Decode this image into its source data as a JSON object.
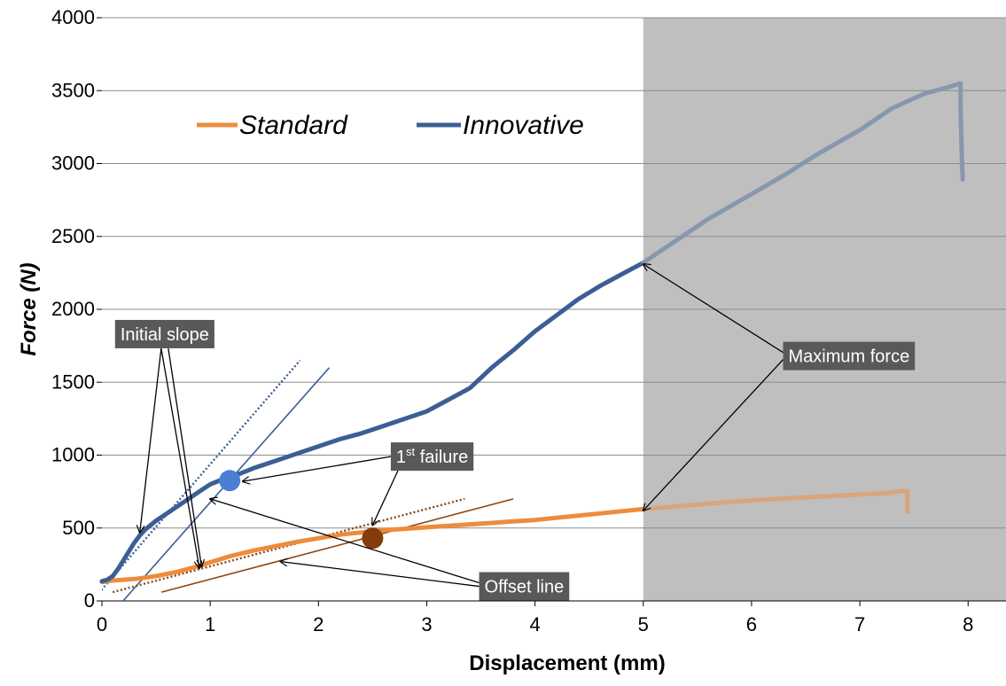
{
  "chart_data": {
    "type": "line",
    "xlabel": "Displacement (mm)",
    "ylabel": "Force (N)",
    "xlim": [
      0,
      8.35
    ],
    "ylim": [
      0,
      4000
    ],
    "x_ticks": [
      0,
      1,
      2,
      3,
      4,
      5,
      6,
      7,
      8
    ],
    "y_ticks": [
      0,
      500,
      1000,
      1500,
      2000,
      2500,
      3000,
      3500,
      4000
    ],
    "grid": "horizontal",
    "legend_position": "top-left",
    "shaded_region": {
      "x_start": 5,
      "x_end": 8.35,
      "color": "#bfbfbf"
    },
    "series": [
      {
        "name": "Standard",
        "color": "#ed8c3d",
        "x": [
          0,
          0.1,
          0.2,
          0.3,
          0.4,
          0.5,
          0.6,
          0.7,
          0.8,
          0.9,
          1.0,
          1.2,
          1.4,
          1.6,
          1.8,
          2.0,
          2.2,
          2.4,
          2.6,
          2.8,
          3.0,
          3.2,
          3.4,
          3.6,
          3.8,
          4.0,
          4.2,
          4.4,
          4.6,
          4.8,
          5.0
        ],
        "y": [
          130,
          140,
          145,
          150,
          160,
          170,
          185,
          200,
          220,
          240,
          265,
          310,
          345,
          375,
          405,
          430,
          455,
          470,
          485,
          495,
          505,
          515,
          525,
          535,
          545,
          555,
          570,
          585,
          600,
          615,
          630
        ]
      },
      {
        "name": "Standard (post-peak)",
        "color": "#d9a57e",
        "x": [
          5.0,
          5.5,
          6.0,
          6.5,
          7.0,
          7.25,
          7.4,
          7.44,
          7.44
        ],
        "y": [
          630,
          660,
          690,
          710,
          730,
          740,
          755,
          750,
          610
        ]
      },
      {
        "name": "Innovative",
        "color": "#3b5f94",
        "x": [
          0,
          0.05,
          0.1,
          0.15,
          0.2,
          0.25,
          0.3,
          0.35,
          0.4,
          0.5,
          0.6,
          0.7,
          0.8,
          0.9,
          1.0,
          1.1,
          1.2,
          1.3,
          1.4,
          1.6,
          1.8,
          2.0,
          2.2,
          2.4,
          2.6,
          2.8,
          3.0,
          3.2,
          3.4,
          3.6,
          3.8,
          4.0,
          4.2,
          4.4,
          4.6,
          4.8,
          5.0
        ],
        "y": [
          135,
          145,
          170,
          220,
          280,
          340,
          400,
          450,
          490,
          550,
          600,
          650,
          700,
          750,
          800,
          830,
          850,
          880,
          910,
          960,
          1010,
          1060,
          1110,
          1150,
          1200,
          1250,
          1300,
          1380,
          1460,
          1600,
          1720,
          1850,
          1960,
          2070,
          2160,
          2240,
          2320
        ]
      },
      {
        "name": "Innovative (post-peak)",
        "color": "#8697ae",
        "x": [
          5.0,
          5.3,
          5.6,
          6.0,
          6.3,
          6.6,
          7.0,
          7.3,
          7.6,
          7.8,
          7.93,
          7.93,
          7.94,
          7.95
        ],
        "y": [
          2320,
          2470,
          2620,
          2790,
          2920,
          3060,
          3230,
          3380,
          3480,
          3520,
          3550,
          3400,
          3100,
          2890
        ]
      }
    ],
    "reference_lines": [
      {
        "label": "Innovative initial slope",
        "color": "#3b5f94",
        "style": "dotted",
        "x": [
          -0.15,
          1.83
        ],
        "y": [
          -50,
          1650
        ]
      },
      {
        "label": "Innovative offset line",
        "color": "#3b5f94",
        "style": "solid",
        "x": [
          0.1,
          2.1
        ],
        "y": [
          -80,
          1600
        ]
      },
      {
        "label": "Standard initial slope",
        "color": "#8b4513",
        "style": "dotted",
        "x": [
          0.1,
          3.35
        ],
        "y": [
          60,
          700
        ]
      },
      {
        "label": "Standard offset line",
        "color": "#8b4513",
        "style": "solid",
        "x": [
          0.55,
          3.8
        ],
        "y": [
          60,
          700
        ]
      }
    ],
    "markers": [
      {
        "label": "Innovative 1st failure",
        "x": 1.18,
        "y": 825,
        "color": "#4a7fd4"
      },
      {
        "label": "Standard 1st failure",
        "x": 2.5,
        "y": 430,
        "color": "#833c0b"
      }
    ],
    "annotations": [
      {
        "id": "initial-slope",
        "text": "Initial slope",
        "x": 0.58,
        "y": 1830
      },
      {
        "id": "first-failure",
        "text": "1",
        "sup": "st",
        "text_after": " failure",
        "x": 3.05,
        "y": 990
      },
      {
        "id": "offset-line",
        "text": "Offset line",
        "x": 3.9,
        "y": 100
      },
      {
        "id": "maximum-force",
        "text": "Maximum force",
        "x": 6.9,
        "y": 1680
      }
    ]
  }
}
